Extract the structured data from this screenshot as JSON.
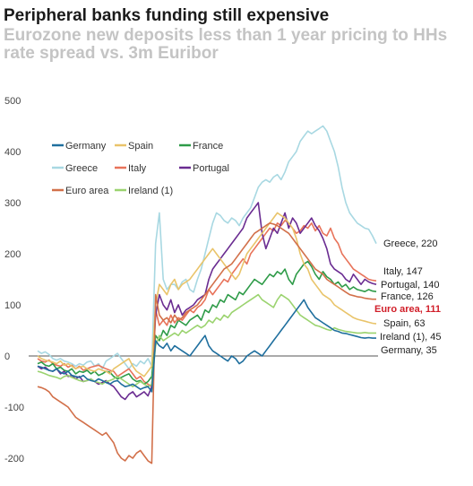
{
  "title": "Peripheral banks funding still expensive",
  "subtitle": "Eurozone new deposits less than 1 year pricing to HHs rate spread vs. 3m Euribor",
  "chart_data": {
    "type": "line",
    "ylim": [
      -200,
      500
    ],
    "yticks": [
      "-200",
      "-100",
      "0",
      "100",
      "200",
      "300",
      "400",
      "500"
    ],
    "x_points": 90,
    "grid": false,
    "legend_position": "top-left",
    "legend": [
      {
        "name": "Germany",
        "color": "#1f6f9e"
      },
      {
        "name": "Spain",
        "color": "#e9c46a"
      },
      {
        "name": "France",
        "color": "#2e9b48"
      },
      {
        "name": "Greece",
        "color": "#a8d8e2"
      },
      {
        "name": "Italy",
        "color": "#e8735a"
      },
      {
        "name": "Portugal",
        "color": "#6a2c91"
      },
      {
        "name": "Euro area",
        "color": "#d2704a"
      },
      {
        "name": "Ireland (1)",
        "color": "#9bd36f"
      }
    ],
    "series": [
      {
        "name": "Greece",
        "color": "#a8d8e2",
        "end_label": "Greece, 220",
        "highlight": false,
        "values": [
          10,
          5,
          8,
          3,
          -5,
          -8,
          -5,
          -10,
          -12,
          -15,
          -20,
          -15,
          -18,
          -12,
          -10,
          -20,
          -15,
          -25,
          -10,
          -5,
          0,
          5,
          -5,
          -15,
          -25,
          -15,
          -20,
          -10,
          -15,
          -5,
          -20,
          220,
          280,
          150,
          130,
          140,
          140,
          130,
          145,
          150,
          130,
          125,
          150,
          170,
          200,
          230,
          260,
          280,
          275,
          265,
          260,
          270,
          265,
          255,
          270,
          280,
          290,
          310,
          330,
          340,
          345,
          340,
          350,
          355,
          345,
          360,
          380,
          390,
          400,
          420,
          430,
          440,
          435,
          440,
          445,
          450,
          440,
          420,
          400,
          370,
          330,
          300,
          280,
          270,
          260,
          255,
          250,
          248,
          235,
          220
        ]
      },
      {
        "name": "Italy",
        "color": "#e8735a",
        "end_label": "Italy, 147",
        "highlight": false,
        "values": [
          -5,
          -10,
          -12,
          -8,
          -15,
          -18,
          -20,
          -15,
          -22,
          -18,
          -25,
          -20,
          -28,
          -25,
          -22,
          -20,
          -18,
          -22,
          -25,
          -28,
          -30,
          -40,
          -35,
          -30,
          -25,
          -35,
          -45,
          -40,
          -50,
          -55,
          -60,
          90,
          60,
          70,
          60,
          80,
          65,
          75,
          70,
          80,
          90,
          85,
          95,
          100,
          110,
          130,
          120,
          130,
          140,
          150,
          145,
          160,
          170,
          180,
          190,
          180,
          200,
          210,
          220,
          230,
          240,
          250,
          245,
          260,
          255,
          265,
          260,
          250,
          240,
          245,
          255,
          250,
          260,
          245,
          255,
          240,
          235,
          250,
          230,
          220,
          200,
          190,
          180,
          170,
          165,
          160,
          155,
          150,
          148,
          147
        ]
      },
      {
        "name": "Portugal",
        "color": "#6a2c91",
        "end_label": "Portugal, 140",
        "highlight": false,
        "values": [
          -20,
          -25,
          -22,
          -28,
          -30,
          -25,
          -35,
          -30,
          -40,
          -38,
          -45,
          -40,
          -50,
          -48,
          -45,
          -50,
          -55,
          -52,
          -48,
          -55,
          -60,
          -70,
          -80,
          -85,
          -75,
          -70,
          -80,
          -75,
          -70,
          -78,
          -60,
          80,
          120,
          100,
          90,
          110,
          85,
          100,
          80,
          90,
          95,
          100,
          110,
          115,
          120,
          150,
          170,
          180,
          190,
          200,
          210,
          220,
          230,
          240,
          250,
          270,
          280,
          290,
          300,
          240,
          210,
          230,
          250,
          240,
          260,
          280,
          250,
          270,
          260,
          240,
          250,
          260,
          270,
          255,
          245,
          230,
          210,
          180,
          170,
          165,
          160,
          150,
          145,
          160,
          150,
          140,
          150,
          145,
          142,
          140
        ]
      },
      {
        "name": "France",
        "color": "#2e9b48",
        "end_label": "France, 126",
        "highlight": false,
        "values": [
          -15,
          -12,
          -18,
          -20,
          -15,
          -25,
          -22,
          -28,
          -30,
          -25,
          -35,
          -30,
          -32,
          -28,
          -35,
          -30,
          -38,
          -35,
          -30,
          -32,
          -40,
          -45,
          -42,
          -38,
          -35,
          -45,
          -50,
          -48,
          -55,
          -50,
          -40,
          40,
          30,
          50,
          40,
          60,
          55,
          70,
          65,
          60,
          70,
          75,
          80,
          70,
          90,
          85,
          100,
          95,
          110,
          105,
          120,
          115,
          110,
          125,
          120,
          130,
          140,
          150,
          145,
          140,
          150,
          160,
          155,
          165,
          160,
          170,
          150,
          140,
          160,
          170,
          180,
          185,
          175,
          160,
          150,
          165,
          155,
          150,
          140,
          145,
          135,
          140,
          130,
          135,
          130,
          128,
          126,
          130,
          127,
          126
        ]
      },
      {
        "name": "Spain",
        "color": "#e9c46a",
        "end_label": "Spain, 63",
        "highlight": false,
        "values": [
          0,
          -5,
          -8,
          -10,
          -12,
          -15,
          -10,
          -18,
          -15,
          -20,
          -25,
          -22,
          -20,
          -25,
          -28,
          -30,
          -25,
          -28,
          -30,
          -35,
          -25,
          -20,
          -15,
          -10,
          -5,
          -20,
          -30,
          -35,
          -40,
          -30,
          -20,
          100,
          140,
          130,
          120,
          140,
          150,
          130,
          140,
          145,
          150,
          160,
          170,
          180,
          190,
          200,
          210,
          200,
          190,
          180,
          170,
          160,
          150,
          160,
          180,
          200,
          210,
          220,
          230,
          240,
          250,
          260,
          270,
          280,
          275,
          270,
          260,
          250,
          230,
          200,
          180,
          170,
          150,
          140,
          130,
          120,
          115,
          110,
          100,
          95,
          90,
          85,
          80,
          75,
          72,
          70,
          68,
          66,
          64,
          63
        ]
      },
      {
        "name": "Euro area",
        "color": "#d2704a",
        "end_label": "Euro area, 111",
        "highlight": true,
        "values": [
          -60,
          -62,
          -65,
          -70,
          -80,
          -85,
          -90,
          -95,
          -100,
          -110,
          -120,
          -125,
          -130,
          -135,
          -140,
          -145,
          -150,
          -155,
          -150,
          -160,
          -170,
          -190,
          -200,
          -205,
          -195,
          -200,
          -190,
          -185,
          -195,
          -205,
          -210,
          120,
          80,
          70,
          75,
          65,
          80,
          70,
          75,
          85,
          90,
          95,
          100,
          110,
          120,
          130,
          140,
          150,
          160,
          170,
          175,
          180,
          190,
          200,
          210,
          220,
          230,
          240,
          245,
          250,
          255,
          260,
          258,
          255,
          250,
          245,
          240,
          230,
          220,
          210,
          200,
          190,
          180,
          170,
          165,
          160,
          150,
          145,
          140,
          135,
          130,
          125,
          120,
          118,
          116,
          115,
          113,
          112,
          111,
          111
        ]
      },
      {
        "name": "Ireland (1)",
        "color": "#9bd36f",
        "end_label": "Ireland (1), 45",
        "highlight": false,
        "values": [
          -30,
          -32,
          -35,
          -38,
          -40,
          -42,
          -45,
          -40,
          -38,
          -42,
          -45,
          -48,
          -50,
          -48,
          -45,
          -50,
          -52,
          -55,
          -50,
          -48,
          -45,
          -40,
          -45,
          -50,
          -55,
          -60,
          -55,
          -50,
          -55,
          -60,
          -55,
          20,
          40,
          30,
          35,
          40,
          45,
          40,
          50,
          45,
          50,
          55,
          60,
          55,
          60,
          70,
          65,
          75,
          70,
          80,
          75,
          85,
          90,
          95,
          100,
          105,
          110,
          115,
          120,
          110,
          105,
          100,
          95,
          110,
          120,
          115,
          110,
          100,
          90,
          80,
          75,
          70,
          65,
          60,
          58,
          55,
          52,
          50,
          55,
          52,
          50,
          48,
          47,
          46,
          45,
          45,
          46,
          45,
          45,
          45
        ]
      },
      {
        "name": "Germany",
        "color": "#1f6f9e",
        "end_label": "Germany, 35",
        "highlight": false,
        "values": [
          -20,
          -22,
          -25,
          -28,
          -30,
          -25,
          -32,
          -35,
          -30,
          -38,
          -40,
          -42,
          -38,
          -45,
          -48,
          -50,
          -45,
          -48,
          -52,
          -55,
          -50,
          -48,
          -55,
          -60,
          -58,
          -55,
          -60,
          -65,
          -62,
          -60,
          -70,
          30,
          20,
          15,
          25,
          10,
          20,
          15,
          10,
          5,
          0,
          10,
          20,
          30,
          40,
          20,
          10,
          5,
          0,
          -5,
          -10,
          0,
          -5,
          -15,
          -10,
          0,
          5,
          10,
          5,
          0,
          10,
          20,
          30,
          40,
          50,
          60,
          70,
          80,
          90,
          100,
          110,
          95,
          85,
          75,
          70,
          65,
          60,
          55,
          50,
          48,
          45,
          44,
          42,
          40,
          38,
          36,
          35,
          36,
          35,
          35
        ]
      }
    ]
  }
}
